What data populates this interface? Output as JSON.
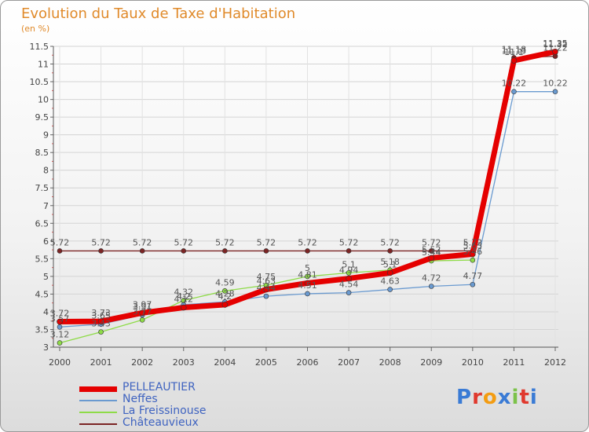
{
  "title": "Evolution du Taux de Taxe d'Habitation",
  "subtitle": "(en %)",
  "brand": "Proxiti",
  "chart_data": {
    "type": "line",
    "title": "Evolution du Taux de Taxe d'Habitation",
    "ylabel": "(en %)",
    "xlabel": "",
    "ylim": [
      3,
      11.5
    ],
    "grid": true,
    "yticks": [
      "3",
      "3.5",
      "4",
      "4.5",
      "5",
      "5.5",
      "6",
      "6.5",
      "7",
      "7.5",
      "8",
      "8.5",
      "9",
      "9.5",
      "10",
      "10.5",
      "11",
      "11.5"
    ],
    "x": [
      "2000",
      "2001",
      "2002",
      "2003",
      "2004",
      "2005",
      "2006",
      "2007",
      "2008",
      "2009",
      "2010",
      "2011",
      "2012"
    ],
    "series": [
      {
        "name": "PELLEAUTIER",
        "color": "#e50000",
        "values": [
          3.72,
          3.73,
          3.97,
          4.12,
          4.2,
          4.63,
          4.81,
          4.94,
          5.1,
          5.52,
          5.63,
          11.1,
          11.35
        ],
        "labels": [
          "3.72",
          "3.73",
          "3.97",
          "4.12",
          "4.2",
          "4.63",
          "4.81",
          "4.94",
          "5.1",
          "5.52",
          "5.63",
          "11.1",
          "11.35"
        ]
      },
      {
        "name": "Neffes",
        "color": "#6a9ad0",
        "values": [
          3.57,
          3.65,
          3.91,
          4.2,
          4.28,
          4.44,
          4.51,
          4.54,
          4.63,
          4.72,
          4.77,
          10.22,
          10.22
        ],
        "labels": [
          "3.57",
          "3.65",
          "3.91",
          "4.2",
          "4.28",
          "4.44",
          "4.51",
          "4.54",
          "4.63",
          "4.72",
          "4.77",
          "10.22",
          "10.22"
        ]
      },
      {
        "name": "La Freissinouse",
        "color": "#8edb48",
        "values": [
          3.12,
          3.43,
          3.77,
          4.32,
          4.59,
          4.75,
          5.0,
          5.1,
          5.18,
          5.44,
          5.46,
          11.13,
          11.32
        ],
        "labels": [
          "3.12",
          "3.43",
          "3.77",
          "4.32",
          "4.59",
          "4.75",
          "5",
          "5.1",
          "5.18",
          "5.44",
          "5.46",
          "11.13",
          "11.32"
        ]
      },
      {
        "name": "Châteauvieux",
        "color": "#7b2424",
        "values": [
          5.72,
          5.72,
          5.72,
          5.72,
          5.72,
          5.72,
          5.72,
          5.72,
          5.72,
          5.72,
          5.72,
          11.18,
          11.22
        ],
        "labels": [
          "5.72",
          "5.72",
          "5.72",
          "5.72",
          "5.72",
          "5.72",
          "5.72",
          "5.72",
          "5.72",
          "5.72",
          "5.72",
          "11.18",
          "11.22"
        ]
      }
    ]
  }
}
